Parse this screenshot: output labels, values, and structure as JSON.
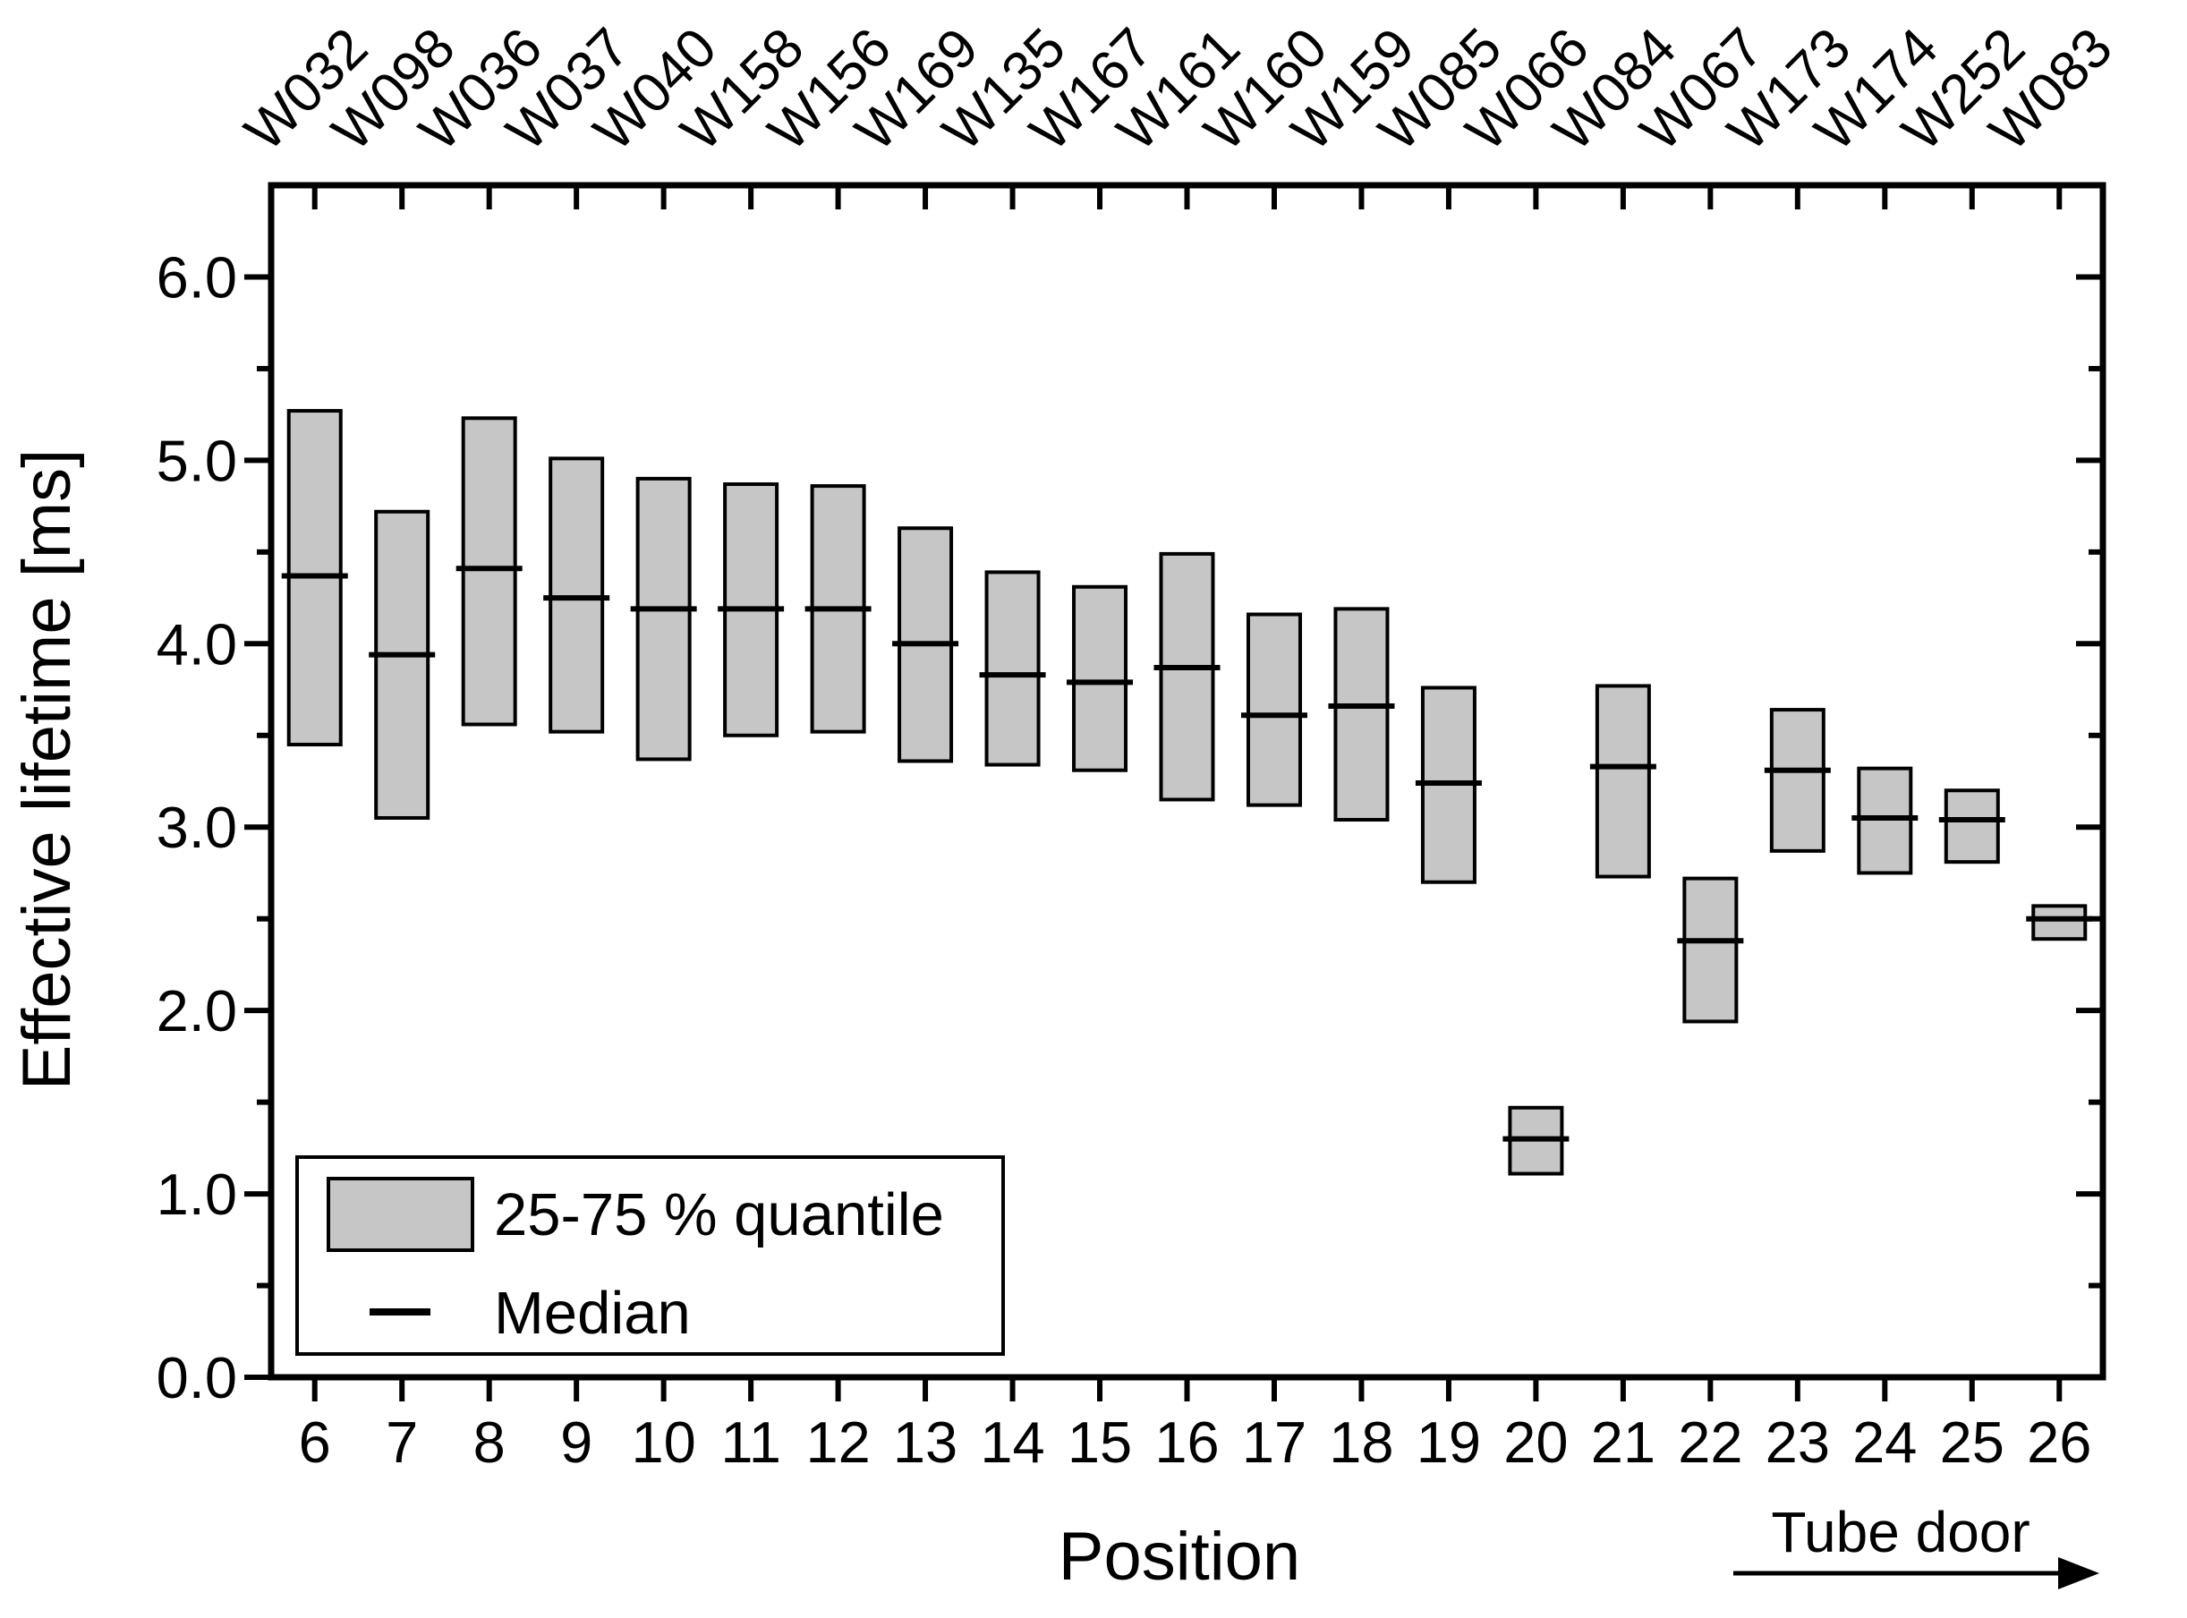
{
  "chart_data": {
    "type": "box",
    "title": "",
    "xlabel": "Position",
    "ylabel": "Effective lifetime [ms]",
    "ylim": [
      0,
      6.5
    ],
    "y_major_ticks": [
      0,
      1,
      2,
      3,
      4,
      5,
      6
    ],
    "y_tick_labels": [
      "0.0",
      "1.0",
      "2.0",
      "3.0",
      "4.0",
      "5.0",
      "6.0"
    ],
    "y_minor_step": 0.5,
    "x_tick_labels": [
      "6",
      "7",
      "8",
      "9",
      "10",
      "11",
      "12",
      "13",
      "14",
      "15",
      "16",
      "17",
      "18",
      "19",
      "20",
      "21",
      "22",
      "23",
      "24",
      "25",
      "26"
    ],
    "top_axis_labels": [
      "W032",
      "W098",
      "W036",
      "W037",
      "W040",
      "W158",
      "W156",
      "W169",
      "W135",
      "W167",
      "W161",
      "W160",
      "W159",
      "W085",
      "W066",
      "W084",
      "W067",
      "W173",
      "W174",
      "W252",
      "W083"
    ],
    "legend": {
      "position": "bottom-left",
      "items": [
        {
          "swatch": "box",
          "label": "25-75 % quantile"
        },
        {
          "swatch": "median-line",
          "label": "Median"
        }
      ]
    },
    "annotation": {
      "text": "Tube door",
      "icon": "arrow-right"
    },
    "colors": {
      "box_fill": "#c6c6c6",
      "line": "#000000",
      "background": "#ffffff"
    },
    "grid": "off",
    "series": [
      {
        "position": 6,
        "wafer": "W032",
        "q25": 3.45,
        "median": 4.37,
        "q75": 5.27
      },
      {
        "position": 7,
        "wafer": "W098",
        "q25": 3.05,
        "median": 3.94,
        "q75": 4.72
      },
      {
        "position": 8,
        "wafer": "W036",
        "q25": 3.56,
        "median": 4.41,
        "q75": 5.23
      },
      {
        "position": 9,
        "wafer": "W037",
        "q25": 3.52,
        "median": 4.25,
        "q75": 5.01
      },
      {
        "position": 10,
        "wafer": "W040",
        "q25": 3.37,
        "median": 4.19,
        "q75": 4.9
      },
      {
        "position": 11,
        "wafer": "W158",
        "q25": 3.5,
        "median": 4.19,
        "q75": 4.87
      },
      {
        "position": 12,
        "wafer": "W156",
        "q25": 3.52,
        "median": 4.19,
        "q75": 4.86
      },
      {
        "position": 13,
        "wafer": "W169",
        "q25": 3.36,
        "median": 4.0,
        "q75": 4.63
      },
      {
        "position": 14,
        "wafer": "W135",
        "q25": 3.34,
        "median": 3.83,
        "q75": 4.39
      },
      {
        "position": 15,
        "wafer": "W167",
        "q25": 3.31,
        "median": 3.79,
        "q75": 4.31
      },
      {
        "position": 16,
        "wafer": "W161",
        "q25": 3.15,
        "median": 3.87,
        "q75": 4.49
      },
      {
        "position": 17,
        "wafer": "W160",
        "q25": 3.12,
        "median": 3.61,
        "q75": 4.16
      },
      {
        "position": 18,
        "wafer": "W159",
        "q25": 3.04,
        "median": 3.66,
        "q75": 4.19
      },
      {
        "position": 19,
        "wafer": "W085",
        "q25": 2.7,
        "median": 3.24,
        "q75": 3.76
      },
      {
        "position": 20,
        "wafer": "W066",
        "q25": 1.11,
        "median": 1.3,
        "q75": 1.47
      },
      {
        "position": 21,
        "wafer": "W084",
        "q25": 2.73,
        "median": 3.33,
        "q75": 3.77
      },
      {
        "position": 22,
        "wafer": "W067",
        "q25": 1.94,
        "median": 2.38,
        "q75": 2.72
      },
      {
        "position": 23,
        "wafer": "W173",
        "q25": 2.87,
        "median": 3.31,
        "q75": 3.64
      },
      {
        "position": 24,
        "wafer": "W174",
        "q25": 2.75,
        "median": 3.05,
        "q75": 3.32
      },
      {
        "position": 25,
        "wafer": "W252",
        "q25": 2.81,
        "median": 3.04,
        "q75": 3.2
      },
      {
        "position": 26,
        "wafer": "W083",
        "q25": 2.39,
        "median": 2.5,
        "q75": 2.57
      }
    ]
  }
}
